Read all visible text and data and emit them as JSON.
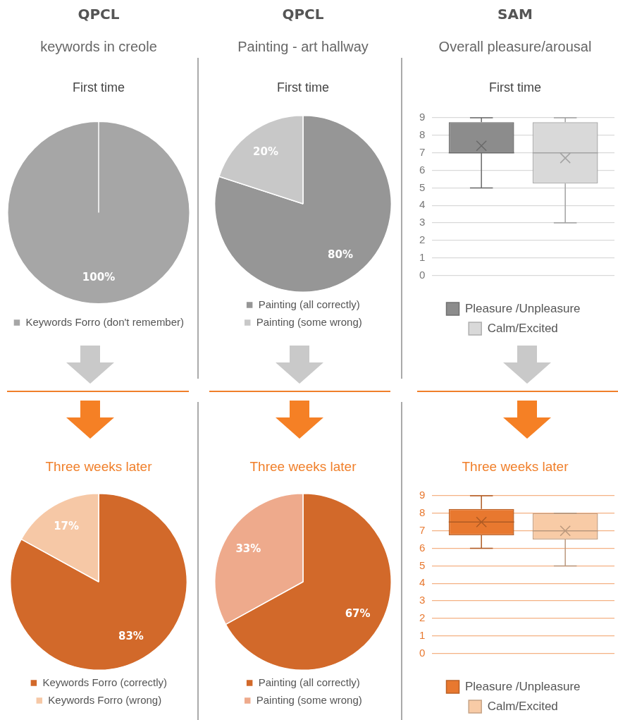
{
  "chart_data": [
    {
      "type": "pie",
      "title": "QPCL",
      "subtitle": "keywords in creole",
      "annotations": [
        "First time"
      ],
      "categories": [
        "Keywords Forro (don't remember)"
      ],
      "values": [
        100
      ],
      "colors": [
        "#a6a6a6"
      ],
      "value_labels": [
        "100%"
      ],
      "legend": "bottom"
    },
    {
      "type": "pie",
      "title": "QPCL",
      "subtitle": "Painting - art hallway",
      "annotations": [
        "First time"
      ],
      "categories": [
        "Painting (all correctly)",
        "Painting (some wrong)"
      ],
      "values": [
        80,
        20
      ],
      "colors": [
        "#969696",
        "#c8c8c8"
      ],
      "value_labels": [
        "80%",
        "20%"
      ],
      "legend": "bottom"
    },
    {
      "type": "box",
      "title": "SAM",
      "subtitle": "Overall pleasure/arousal",
      "annotations": [
        "First time"
      ],
      "categories": [
        null
      ],
      "ylim": [
        0,
        9
      ],
      "yticks": [
        0,
        1,
        2,
        3,
        4,
        5,
        6,
        7,
        8,
        9
      ],
      "grid": "y",
      "legend": "bottom",
      "series": [
        {
          "name": "Pleasure /Unpleasure",
          "color": "#8c8c8c",
          "boxes": [
            {
              "low": 5,
              "q1": 7,
              "median": 7,
              "q3": 8.75,
              "high": 9,
              "mean": 7.4
            }
          ]
        },
        {
          "name": "Calm/Excited",
          "color": "#d9d9d9",
          "boxes": [
            {
              "low": 3,
              "q1": 5.25,
              "median": 7,
              "q3": 8.75,
              "high": 9,
              "mean": 6.7
            }
          ]
        }
      ]
    },
    {
      "type": "pie",
      "title": "Three weeks later",
      "categories": [
        "Keywords Forro (correctly)",
        "Keywords Forro (wrong)"
      ],
      "values": [
        83,
        17
      ],
      "colors": [
        "#d2692a",
        "#f6c8a6"
      ],
      "value_labels": [
        "83%",
        "17%"
      ],
      "legend": "bottom"
    },
    {
      "type": "pie",
      "title": "Three weeks later",
      "categories": [
        "Painting (all correctly)",
        "Painting (some wrong)"
      ],
      "values": [
        67,
        33
      ],
      "colors": [
        "#d2692a",
        "#eeaa8c"
      ],
      "value_labels": [
        "67%",
        "33%"
      ],
      "legend": "bottom"
    },
    {
      "type": "box",
      "title": "Three weeks later",
      "categories": [
        null
      ],
      "ylim": [
        0,
        9
      ],
      "yticks": [
        0,
        1,
        2,
        3,
        4,
        5,
        6,
        7,
        8,
        9
      ],
      "grid": "y",
      "legend": "bottom",
      "series": [
        {
          "name": "Pleasure /Unpleasure",
          "color": "#e8782f",
          "boxes": [
            {
              "low": 6,
              "q1": 6.75,
              "median": 7.5,
              "q3": 8.25,
              "high": 9,
              "mean": 7.5
            }
          ]
        },
        {
          "name": "Calm/Excited",
          "color": "#f8cba6",
          "boxes": [
            {
              "low": 5,
              "q1": 6.5,
              "median": 7,
              "q3": 8,
              "high": 8,
              "mean": 7
            }
          ]
        }
      ]
    }
  ]
}
